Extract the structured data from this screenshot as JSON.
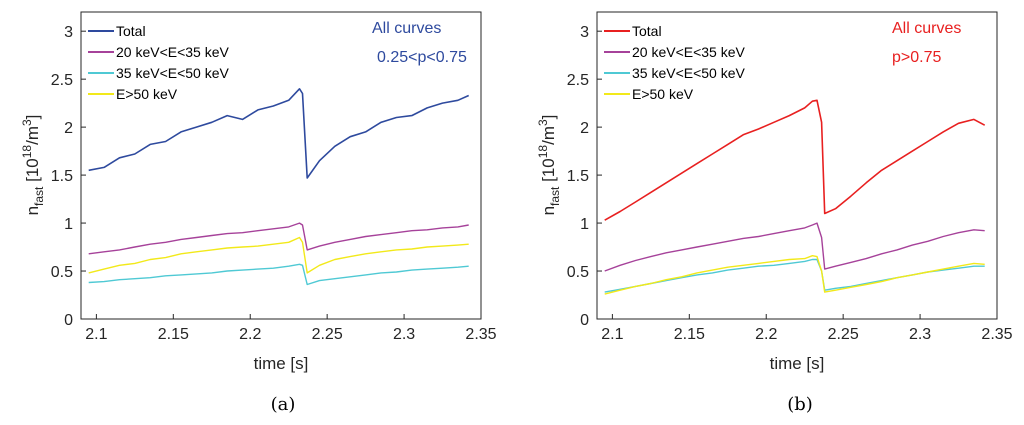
{
  "chart_data": [
    {
      "type": "line",
      "caption": "(a)",
      "xlabel": "time [s]",
      "ylabel": "n_fast [10^18/m^3]",
      "xlim": [
        2.09,
        2.35
      ],
      "ylim": [
        0,
        3.2
      ],
      "xticks": [
        "2.1",
        "2.15",
        "2.2",
        "2.25",
        "2.3",
        "2.35"
      ],
      "yticks": [
        "0",
        "0.5",
        "1",
        "1.5",
        "2",
        "2.5",
        "3"
      ],
      "legend_position": "top-left",
      "annotation": [
        "All curves",
        "0.25<p<0.75"
      ],
      "annotation_color": "#2e4a9e",
      "grid": false,
      "series": [
        {
          "name": "Total",
          "color": "#2e4a9e",
          "x": [
            2.095,
            2.105,
            2.115,
            2.125,
            2.135,
            2.145,
            2.155,
            2.165,
            2.175,
            2.185,
            2.195,
            2.205,
            2.215,
            2.225,
            2.232,
            2.234,
            2.237,
            2.245,
            2.255,
            2.265,
            2.275,
            2.285,
            2.295,
            2.305,
            2.315,
            2.325,
            2.335,
            2.342
          ],
          "y": [
            1.55,
            1.58,
            1.68,
            1.72,
            1.82,
            1.85,
            1.95,
            2.0,
            2.05,
            2.12,
            2.08,
            2.18,
            2.22,
            2.28,
            2.4,
            2.35,
            1.47,
            1.65,
            1.8,
            1.9,
            1.95,
            2.05,
            2.1,
            2.12,
            2.2,
            2.25,
            2.28,
            2.33
          ]
        },
        {
          "name": "20 keV<E<35 keV",
          "color": "#a6429a",
          "x": [
            2.095,
            2.105,
            2.115,
            2.125,
            2.135,
            2.145,
            2.155,
            2.165,
            2.175,
            2.185,
            2.195,
            2.205,
            2.215,
            2.225,
            2.232,
            2.234,
            2.237,
            2.245,
            2.255,
            2.265,
            2.275,
            2.285,
            2.295,
            2.305,
            2.315,
            2.325,
            2.335,
            2.342
          ],
          "y": [
            0.68,
            0.7,
            0.72,
            0.75,
            0.78,
            0.8,
            0.83,
            0.85,
            0.87,
            0.89,
            0.9,
            0.92,
            0.94,
            0.96,
            1.0,
            0.98,
            0.72,
            0.76,
            0.8,
            0.83,
            0.86,
            0.88,
            0.9,
            0.92,
            0.93,
            0.95,
            0.96,
            0.98
          ]
        },
        {
          "name": "35 keV<E<50 keV",
          "color": "#4fc9d4",
          "x": [
            2.095,
            2.105,
            2.115,
            2.125,
            2.135,
            2.145,
            2.155,
            2.165,
            2.175,
            2.185,
            2.195,
            2.205,
            2.215,
            2.225,
            2.232,
            2.234,
            2.237,
            2.245,
            2.255,
            2.265,
            2.275,
            2.285,
            2.295,
            2.305,
            2.315,
            2.325,
            2.335,
            2.342
          ],
          "y": [
            0.38,
            0.39,
            0.41,
            0.42,
            0.43,
            0.45,
            0.46,
            0.47,
            0.48,
            0.5,
            0.51,
            0.52,
            0.53,
            0.55,
            0.57,
            0.56,
            0.36,
            0.4,
            0.42,
            0.44,
            0.46,
            0.48,
            0.49,
            0.51,
            0.52,
            0.53,
            0.54,
            0.55
          ]
        },
        {
          "name": "E>50 keV",
          "color": "#f2e91a",
          "x": [
            2.095,
            2.105,
            2.115,
            2.125,
            2.135,
            2.145,
            2.155,
            2.165,
            2.175,
            2.185,
            2.195,
            2.205,
            2.215,
            2.225,
            2.232,
            2.234,
            2.237,
            2.245,
            2.255,
            2.265,
            2.275,
            2.285,
            2.295,
            2.305,
            2.315,
            2.325,
            2.335,
            2.342
          ],
          "y": [
            0.48,
            0.52,
            0.56,
            0.58,
            0.62,
            0.64,
            0.68,
            0.7,
            0.72,
            0.74,
            0.75,
            0.76,
            0.78,
            0.8,
            0.85,
            0.8,
            0.48,
            0.56,
            0.62,
            0.65,
            0.68,
            0.7,
            0.72,
            0.73,
            0.75,
            0.76,
            0.77,
            0.78
          ]
        }
      ]
    },
    {
      "type": "line",
      "caption": "(b)",
      "xlabel": "time [s]",
      "ylabel": "n_fast [10^18/m^3]",
      "xlim": [
        2.09,
        2.35
      ],
      "ylim": [
        0,
        3.2
      ],
      "xticks": [
        "2.1",
        "2.15",
        "2.2",
        "2.25",
        "2.3",
        "2.35"
      ],
      "yticks": [
        "0",
        "0.5",
        "1",
        "1.5",
        "2",
        "2.5",
        "3"
      ],
      "legend_position": "top-left",
      "annotation": [
        "All curves",
        "p>0.75"
      ],
      "annotation_color": "#e82020",
      "grid": false,
      "series": [
        {
          "name": "Total",
          "color": "#e82020",
          "x": [
            2.095,
            2.105,
            2.115,
            2.125,
            2.135,
            2.145,
            2.155,
            2.165,
            2.175,
            2.185,
            2.195,
            2.205,
            2.215,
            2.225,
            2.23,
            2.233,
            2.236,
            2.238,
            2.245,
            2.255,
            2.265,
            2.275,
            2.285,
            2.295,
            2.305,
            2.315,
            2.325,
            2.335,
            2.342
          ],
          "y": [
            1.03,
            1.12,
            1.22,
            1.32,
            1.42,
            1.52,
            1.62,
            1.72,
            1.82,
            1.92,
            1.98,
            2.05,
            2.12,
            2.2,
            2.27,
            2.28,
            2.05,
            1.1,
            1.15,
            1.28,
            1.42,
            1.55,
            1.65,
            1.75,
            1.85,
            1.95,
            2.04,
            2.08,
            2.02
          ]
        },
        {
          "name": "20 keV<E<35 keV",
          "color": "#a6429a",
          "x": [
            2.095,
            2.105,
            2.115,
            2.125,
            2.135,
            2.145,
            2.155,
            2.165,
            2.175,
            2.185,
            2.195,
            2.205,
            2.215,
            2.225,
            2.23,
            2.233,
            2.236,
            2.238,
            2.245,
            2.255,
            2.265,
            2.275,
            2.285,
            2.295,
            2.305,
            2.315,
            2.325,
            2.335,
            2.342
          ],
          "y": [
            0.5,
            0.56,
            0.61,
            0.65,
            0.69,
            0.72,
            0.75,
            0.78,
            0.81,
            0.84,
            0.86,
            0.89,
            0.92,
            0.95,
            0.98,
            1.0,
            0.85,
            0.52,
            0.55,
            0.59,
            0.63,
            0.68,
            0.72,
            0.77,
            0.81,
            0.86,
            0.9,
            0.93,
            0.92
          ]
        },
        {
          "name": "35 keV<E<50 keV",
          "color": "#4fc9d4",
          "x": [
            2.095,
            2.105,
            2.115,
            2.125,
            2.135,
            2.145,
            2.155,
            2.165,
            2.175,
            2.185,
            2.195,
            2.205,
            2.215,
            2.225,
            2.23,
            2.233,
            2.236,
            2.238,
            2.245,
            2.255,
            2.265,
            2.275,
            2.285,
            2.295,
            2.305,
            2.315,
            2.325,
            2.335,
            2.342
          ],
          "y": [
            0.28,
            0.31,
            0.34,
            0.37,
            0.4,
            0.43,
            0.46,
            0.48,
            0.51,
            0.53,
            0.55,
            0.56,
            0.58,
            0.6,
            0.62,
            0.62,
            0.5,
            0.3,
            0.32,
            0.34,
            0.37,
            0.4,
            0.43,
            0.46,
            0.49,
            0.51,
            0.53,
            0.55,
            0.55
          ]
        },
        {
          "name": "E>50 keV",
          "color": "#f2e91a",
          "x": [
            2.095,
            2.105,
            2.115,
            2.125,
            2.135,
            2.145,
            2.155,
            2.165,
            2.175,
            2.185,
            2.195,
            2.205,
            2.215,
            2.225,
            2.23,
            2.233,
            2.236,
            2.238,
            2.245,
            2.255,
            2.265,
            2.275,
            2.285,
            2.295,
            2.305,
            2.315,
            2.325,
            2.335,
            2.342
          ],
          "y": [
            0.26,
            0.3,
            0.34,
            0.37,
            0.41,
            0.44,
            0.48,
            0.51,
            0.54,
            0.56,
            0.58,
            0.6,
            0.62,
            0.63,
            0.66,
            0.65,
            0.5,
            0.28,
            0.3,
            0.33,
            0.36,
            0.39,
            0.43,
            0.46,
            0.49,
            0.52,
            0.55,
            0.58,
            0.57
          ]
        }
      ]
    }
  ]
}
